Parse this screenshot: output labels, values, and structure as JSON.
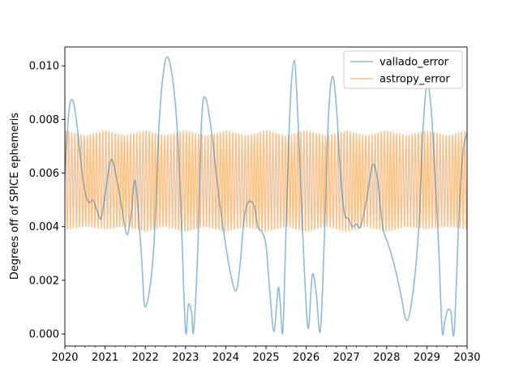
{
  "chart_data": {
    "type": "line",
    "title": "",
    "xlabel": "",
    "ylabel": "Degrees off of SPICE ephemeris",
    "xlim": [
      2020,
      2030
    ],
    "ylim": [
      -0.00045,
      0.0107
    ],
    "xticks": [
      2020,
      2021,
      2022,
      2023,
      2024,
      2025,
      2026,
      2027,
      2028,
      2029,
      2030
    ],
    "xtick_labels": [
      "2020",
      "2021",
      "2022",
      "2023",
      "2024",
      "2025",
      "2026",
      "2027",
      "2028",
      "2029",
      "2030"
    ],
    "yticks": [
      0.0,
      0.002,
      0.004,
      0.006,
      0.008,
      0.01
    ],
    "ytick_labels": [
      "0.000",
      "0.002",
      "0.004",
      "0.006",
      "0.008",
      "0.010"
    ],
    "grid": false,
    "legend_position": "top-right",
    "series": [
      {
        "name": "vallado_error",
        "color": "#1f77b4",
        "opacity": 0.5,
        "x": [
          2020.0,
          2020.1,
          2020.2,
          2020.3,
          2020.4,
          2020.5,
          2020.6,
          2020.7,
          2020.8,
          2020.9,
          2021.0,
          2021.15,
          2021.3,
          2021.45,
          2021.55,
          2021.65,
          2021.75,
          2021.9,
          2022.0,
          2022.2,
          2022.35,
          2022.5,
          2022.65,
          2022.8,
          2022.9,
          2023.0,
          2023.07,
          2023.15,
          2023.2,
          2023.3,
          2023.4,
          2023.5,
          2023.65,
          2023.8,
          2023.95,
          2024.1,
          2024.25,
          2024.35,
          2024.45,
          2024.55,
          2024.7,
          2024.8,
          2024.9,
          2025.0,
          2025.1,
          2025.2,
          2025.3,
          2025.35,
          2025.42,
          2025.5,
          2025.6,
          2025.7,
          2025.78,
          2025.85,
          2025.95,
          2026.05,
          2026.15,
          2026.25,
          2026.35,
          2026.45,
          2026.55,
          2026.65,
          2026.75,
          2026.85,
          2026.95,
          2027.05,
          2027.15,
          2027.25,
          2027.35,
          2027.5,
          2027.65,
          2027.78,
          2027.9,
          2028.05,
          2028.2,
          2028.35,
          2028.5,
          2028.65,
          2028.8,
          2028.9,
          2029.0,
          2029.1,
          2029.2,
          2029.3,
          2029.38,
          2029.45,
          2029.52,
          2029.6,
          2029.68,
          2029.8,
          2029.9,
          2030.0
        ],
        "y": [
          0.0059,
          0.0083,
          0.0087,
          0.0078,
          0.0064,
          0.0053,
          0.0049,
          0.005,
          0.0046,
          0.0043,
          0.0052,
          0.0065,
          0.0057,
          0.0044,
          0.0037,
          0.0045,
          0.0057,
          0.003,
          0.001,
          0.003,
          0.008,
          0.0102,
          0.0098,
          0.0075,
          0.004,
          0.0001,
          0.0011,
          0.0008,
          0.0001,
          0.003,
          0.008,
          0.0088,
          0.0075,
          0.0055,
          0.0038,
          0.0024,
          0.0016,
          0.0025,
          0.0042,
          0.0049,
          0.0048,
          0.004,
          0.0038,
          0.0033,
          0.0015,
          0.0001,
          0.0017,
          0.0012,
          0.0001,
          0.004,
          0.0085,
          0.0102,
          0.0085,
          0.006,
          0.0025,
          0.0002,
          0.0022,
          0.0015,
          0.0001,
          0.0035,
          0.008,
          0.0096,
          0.0085,
          0.006,
          0.0045,
          0.0043,
          0.004,
          0.0041,
          0.004,
          0.005,
          0.0063,
          0.0057,
          0.004,
          0.0033,
          0.0025,
          0.0015,
          0.0005,
          0.0015,
          0.004,
          0.0075,
          0.0093,
          0.0085,
          0.006,
          0.003,
          0.0001,
          0.0005,
          0.0009,
          0.0008,
          0.0001,
          0.0045,
          0.0068,
          0.0075
        ]
      },
      {
        "name": "astropy_error",
        "color": "#ff7f0e",
        "opacity": 0.5,
        "oscillation_cycles": 130,
        "center": 0.0057,
        "x": [
          2020.0,
          2020.5,
          2021.0,
          2021.5,
          2022.0,
          2022.5,
          2023.0,
          2023.5,
          2024.0,
          2024.5,
          2025.0,
          2025.5,
          2026.0,
          2026.5,
          2027.0,
          2027.5,
          2028.0,
          2028.5,
          2029.0,
          2029.5,
          2030.0
        ],
        "upper_envelope": [
          0.0076,
          0.0074,
          0.0076,
          0.0074,
          0.0076,
          0.0074,
          0.0076,
          0.0074,
          0.0076,
          0.0074,
          0.0076,
          0.0074,
          0.0076,
          0.0074,
          0.0076,
          0.0074,
          0.0076,
          0.0074,
          0.0076,
          0.0074,
          0.0076
        ],
        "lower_envelope": [
          0.0039,
          0.004,
          0.0039,
          0.004,
          0.0038,
          0.004,
          0.0038,
          0.004,
          0.0038,
          0.004,
          0.0038,
          0.004,
          0.0038,
          0.004,
          0.0038,
          0.004,
          0.0038,
          0.004,
          0.0039,
          0.004,
          0.0039
        ]
      }
    ]
  }
}
